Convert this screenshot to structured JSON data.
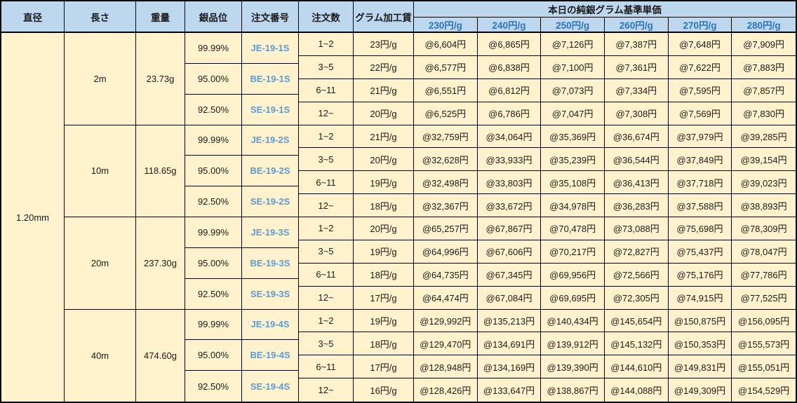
{
  "table": {
    "colors": {
      "header_bg": "#BDD7EE",
      "body_bg": "#FFF2CC",
      "border": "#000000",
      "price_header_text": "#2E75B6",
      "order_no_text": "#5B9BD5",
      "cell_text": "#1A1A1A"
    },
    "headers": {
      "left": [
        "直径",
        "長さ",
        "重量",
        "銀品位",
        "注文番号",
        "注文数",
        "グラム加工賃"
      ],
      "price_group": "本日の純銀グラム基準単価",
      "price_cols": [
        "230円/g",
        "240円/g",
        "250円/g",
        "260円/g",
        "270円/g",
        "280円/g"
      ]
    },
    "diameter_value": "1.20mm",
    "sections": [
      {
        "length": "2m",
        "weight": "23.73g",
        "purities": [
          {
            "purity": "99.99%",
            "order_no": "JE-19-1S"
          },
          {
            "purity": "95.00%",
            "order_no": "BE-19-1S"
          },
          {
            "purity": "92.50%",
            "order_no": "SE-19-1S"
          }
        ],
        "rows": [
          {
            "qty": "1~2",
            "fee": "23円/g",
            "prices": [
              "@6,604円",
              "@6,865円",
              "@7,126円",
              "@7,387円",
              "@7,648円",
              "@7,909円"
            ]
          },
          {
            "qty": "3~5",
            "fee": "22円/g",
            "prices": [
              "@6,577円",
              "@6,838円",
              "@7,100円",
              "@7,361円",
              "@7,622円",
              "@7,883円"
            ]
          },
          {
            "qty": "6~11",
            "fee": "21円/g",
            "prices": [
              "@6,551円",
              "@6,812円",
              "@7,073円",
              "@7,334円",
              "@7,595円",
              "@7,857円"
            ]
          },
          {
            "qty": "12~",
            "fee": "20円/g",
            "prices": [
              "@6,525円",
              "@6,786円",
              "@7,047円",
              "@7,308円",
              "@7,569円",
              "@7,830円"
            ]
          }
        ]
      },
      {
        "length": "10m",
        "weight": "118.65g",
        "purities": [
          {
            "purity": "99.99%",
            "order_no": "JE-19-2S"
          },
          {
            "purity": "95.00%",
            "order_no": "BE-19-2S"
          },
          {
            "purity": "92.50%",
            "order_no": "SE-19-2S"
          }
        ],
        "rows": [
          {
            "qty": "1~2",
            "fee": "21円/g",
            "prices": [
              "@32,759円",
              "@34,064円",
              "@35,369円",
              "@36,674円",
              "@37,979円",
              "@39,285円"
            ]
          },
          {
            "qty": "3~5",
            "fee": "20円/g",
            "prices": [
              "@32,628円",
              "@33,933円",
              "@35,239円",
              "@36,544円",
              "@37,849円",
              "@39,154円"
            ]
          },
          {
            "qty": "6~11",
            "fee": "19円/g",
            "prices": [
              "@32,498円",
              "@33,803円",
              "@35,108円",
              "@36,413円",
              "@37,718円",
              "@39,023円"
            ]
          },
          {
            "qty": "12~",
            "fee": "18円/g",
            "prices": [
              "@32,367円",
              "@33,672円",
              "@34,978円",
              "@36,283円",
              "@37,588円",
              "@38,893円"
            ]
          }
        ]
      },
      {
        "length": "20m",
        "weight": "237.30g",
        "purities": [
          {
            "purity": "99.99%",
            "order_no": "JE-19-3S"
          },
          {
            "purity": "95.00%",
            "order_no": "BE-19-3S"
          },
          {
            "purity": "92.50%",
            "order_no": "SE-19-3S"
          }
        ],
        "rows": [
          {
            "qty": "1~2",
            "fee": "20円/g",
            "prices": [
              "@65,257円",
              "@67,867円",
              "@70,478円",
              "@73,088円",
              "@75,698円",
              "@78,309円"
            ]
          },
          {
            "qty": "3~5",
            "fee": "19円/g",
            "prices": [
              "@64,996円",
              "@67,606円",
              "@70,217円",
              "@72,827円",
              "@75,437円",
              "@78,047円"
            ]
          },
          {
            "qty": "6~11",
            "fee": "18円/g",
            "prices": [
              "@64,735円",
              "@67,345円",
              "@69,956円",
              "@72,566円",
              "@75,176円",
              "@77,786円"
            ]
          },
          {
            "qty": "12~",
            "fee": "17円/g",
            "prices": [
              "@64,474円",
              "@67,084円",
              "@69,695円",
              "@72,305円",
              "@74,915円",
              "@77,525円"
            ]
          }
        ]
      },
      {
        "length": "40m",
        "weight": "474.60g",
        "purities": [
          {
            "purity": "99.99%",
            "order_no": "JE-19-4S"
          },
          {
            "purity": "95.00%",
            "order_no": "BE-19-4S"
          },
          {
            "purity": "92.50%",
            "order_no": "SE-19-4S"
          }
        ],
        "rows": [
          {
            "qty": "1~2",
            "fee": "19円/g",
            "prices": [
              "@129,992円",
              "@135,213円",
              "@140,434円",
              "@145,654円",
              "@150,875円",
              "@156,095円"
            ]
          },
          {
            "qty": "3~5",
            "fee": "18円/g",
            "prices": [
              "@129,470円",
              "@134,691円",
              "@139,912円",
              "@145,132円",
              "@150,353円",
              "@155,573円"
            ]
          },
          {
            "qty": "6~11",
            "fee": "17円/g",
            "prices": [
              "@128,948円",
              "@134,169円",
              "@139,390円",
              "@144,610円",
              "@149,831円",
              "@155,051円"
            ]
          },
          {
            "qty": "12~",
            "fee": "16円/g",
            "prices": [
              "@128,426円",
              "@133,647円",
              "@138,867円",
              "@144,088円",
              "@149,309円",
              "@154,529円"
            ]
          }
        ]
      }
    ]
  }
}
